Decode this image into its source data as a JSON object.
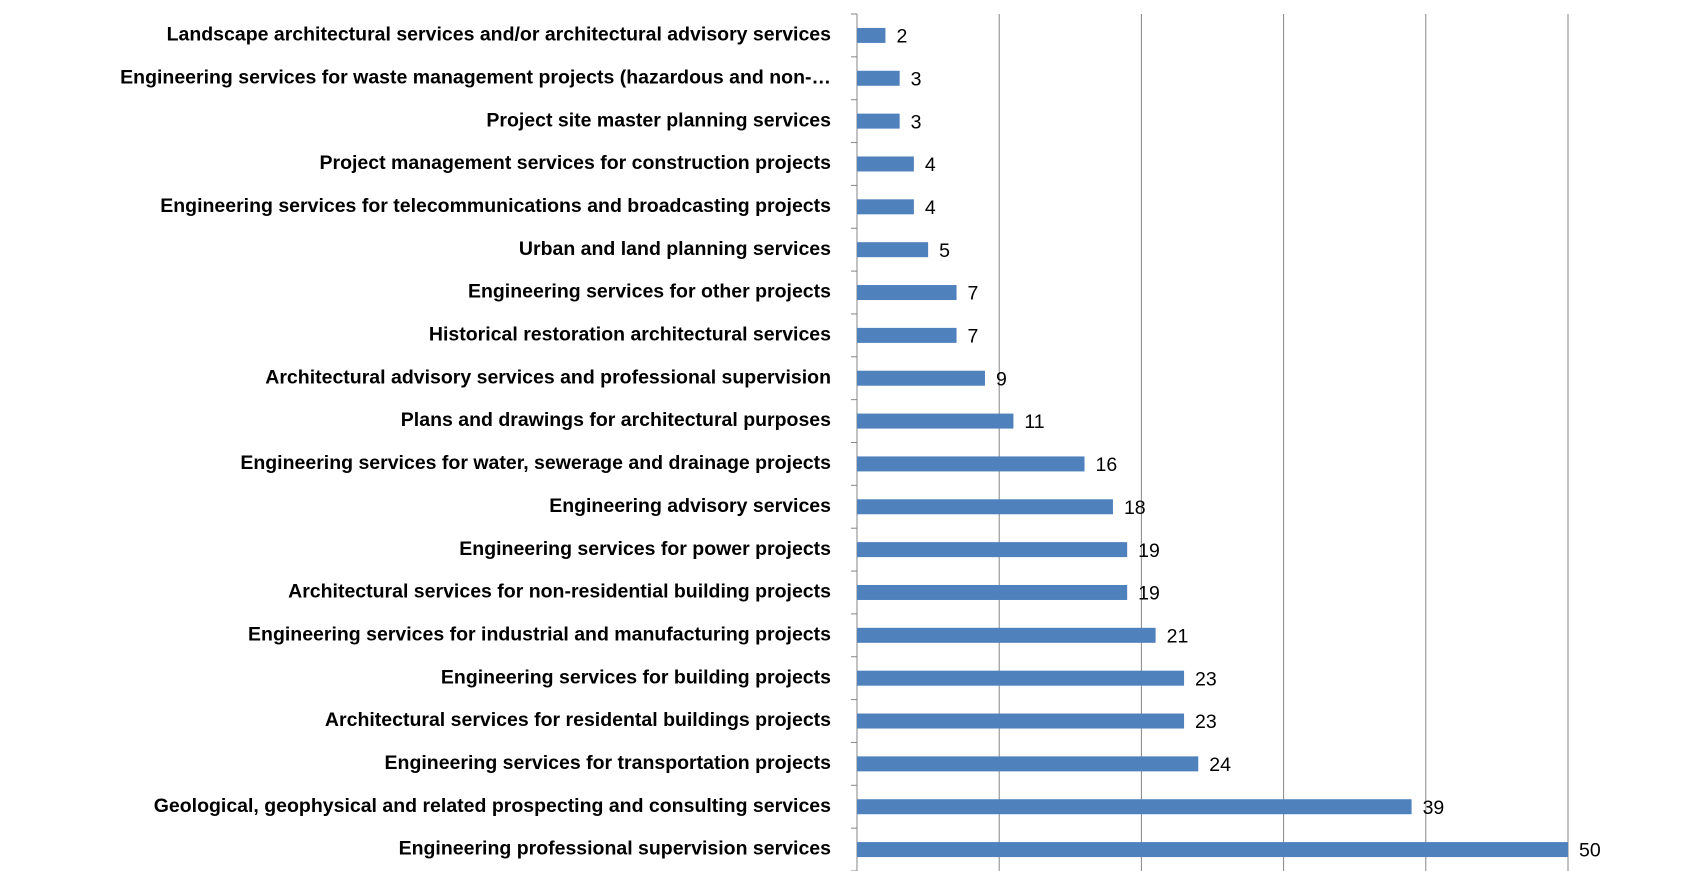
{
  "chart_data": {
    "type": "barh",
    "categories": [
      "Landscape architectural services and/or architectural advisory services",
      "Engineering services for waste management projects (hazardous and non-…",
      "Project site master planning services",
      "Project management services for construction projects",
      "Engineering services for telecommunications and broadcasting projects",
      "Urban and land planning services",
      "Engineering services for other projects",
      "Historical restoration architectural services",
      "Architectural advisory services and professional supervision",
      "Plans and drawings for architectural purposes",
      "Engineering services for water, sewerage and drainage projects",
      "Engineering advisory services",
      "Engineering services for power projects",
      "Architectural services for non-residential building  projects",
      "Engineering services for industrial and manufacturing  projects",
      "Engineering services for building projects",
      "Architectural services for residental buildings projects",
      "Engineering services for transportation projects",
      "Geological, geophysical and related prospecting and consulting services",
      "Engineering professional supervision services"
    ],
    "values": [
      2,
      3,
      3,
      4,
      4,
      5,
      7,
      7,
      9,
      11,
      16,
      18,
      19,
      19,
      21,
      23,
      23,
      24,
      39,
      50
    ],
    "color": "#4f81bd",
    "xlim": [
      0,
      50
    ],
    "xticks": [
      0,
      10,
      20,
      30,
      40,
      50
    ],
    "xtick_labels": false,
    "grid": true
  }
}
